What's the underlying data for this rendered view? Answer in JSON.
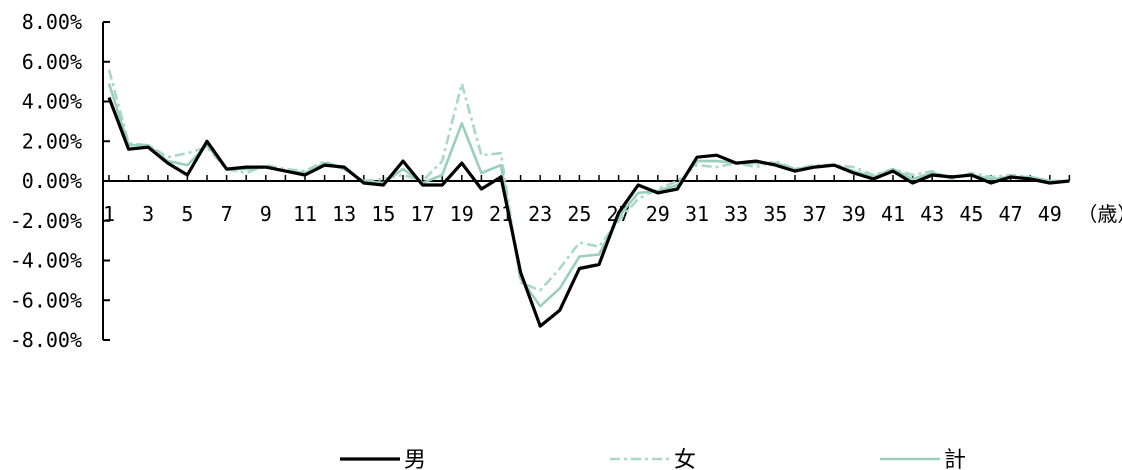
{
  "chart_data": {
    "type": "line",
    "x": [
      1,
      2,
      3,
      4,
      5,
      6,
      7,
      8,
      9,
      10,
      11,
      12,
      13,
      14,
      15,
      16,
      17,
      18,
      19,
      20,
      21,
      22,
      23,
      24,
      25,
      26,
      27,
      28,
      29,
      30,
      31,
      32,
      33,
      34,
      35,
      36,
      37,
      38,
      39,
      40,
      41,
      42,
      43,
      44,
      45,
      46,
      47,
      48,
      49,
      50
    ],
    "x_tick_labels": [
      "1",
      "3",
      "5",
      "7",
      "9",
      "11",
      "13",
      "15",
      "17",
      "19",
      "21",
      "23",
      "25",
      "27",
      "29",
      "31",
      "33",
      "35",
      "37",
      "39",
      "41",
      "43",
      "45",
      "47",
      "49"
    ],
    "x_unit_label": "（歳）",
    "y_tick_labels": [
      "8.00%",
      "6.00%",
      "4.00%",
      "2.00%",
      "0.00%",
      "-2.00%",
      "-4.00%",
      "-6.00%",
      "-8.00%"
    ],
    "ylim": [
      -8,
      8
    ],
    "y_unit": "%",
    "grid": false,
    "legend_position": "bottom",
    "series": [
      {
        "name": "男",
        "color": "#000000",
        "style": "solid",
        "values": [
          4.2,
          1.6,
          1.7,
          0.9,
          0.3,
          2.0,
          0.6,
          0.7,
          0.7,
          0.5,
          0.3,
          0.8,
          0.7,
          -0.1,
          -0.2,
          1.0,
          -0.2,
          -0.2,
          0.9,
          -0.4,
          0.2,
          -4.6,
          -7.3,
          -6.5,
          -4.4,
          -4.2,
          -1.6,
          -0.2,
          -0.6,
          -0.4,
          1.2,
          1.3,
          0.9,
          1.0,
          0.8,
          0.5,
          0.7,
          0.8,
          0.4,
          0.1,
          0.5,
          -0.1,
          0.3,
          0.2,
          0.3,
          -0.1,
          0.2,
          0.1,
          -0.1,
          0.0
        ]
      },
      {
        "name": "女",
        "color": "#a9d8c8",
        "style": "dashdot",
        "values": [
          5.6,
          1.9,
          1.8,
          1.2,
          1.4,
          1.7,
          0.6,
          0.4,
          0.8,
          0.6,
          0.5,
          1.0,
          0.6,
          0.0,
          0.1,
          0.3,
          0.0,
          1.0,
          4.9,
          1.3,
          1.4,
          -5.1,
          -5.5,
          -4.4,
          -3.1,
          -3.3,
          -2.0,
          -0.9,
          -0.4,
          0.0,
          0.8,
          0.7,
          0.9,
          0.7,
          1.0,
          0.6,
          0.8,
          0.8,
          0.7,
          0.3,
          0.6,
          0.3,
          0.5,
          0.1,
          0.4,
          0.2,
          0.3,
          0.2,
          0.0,
          0.0
        ]
      },
      {
        "name": "計",
        "color": "#9bcfbd",
        "style": "solid",
        "values": [
          4.9,
          1.8,
          1.8,
          1.0,
          0.8,
          1.8,
          0.6,
          0.6,
          0.7,
          0.5,
          0.4,
          0.9,
          0.6,
          0.0,
          -0.1,
          0.6,
          -0.1,
          0.3,
          2.9,
          0.4,
          0.8,
          -4.9,
          -6.3,
          -5.4,
          -3.8,
          -3.7,
          -1.8,
          -0.6,
          -0.5,
          -0.2,
          1.0,
          1.0,
          0.9,
          0.9,
          0.9,
          0.6,
          0.7,
          0.8,
          0.5,
          0.2,
          0.6,
          0.1,
          0.4,
          0.2,
          0.3,
          0.1,
          0.2,
          0.2,
          0.0,
          0.0
        ]
      }
    ]
  }
}
